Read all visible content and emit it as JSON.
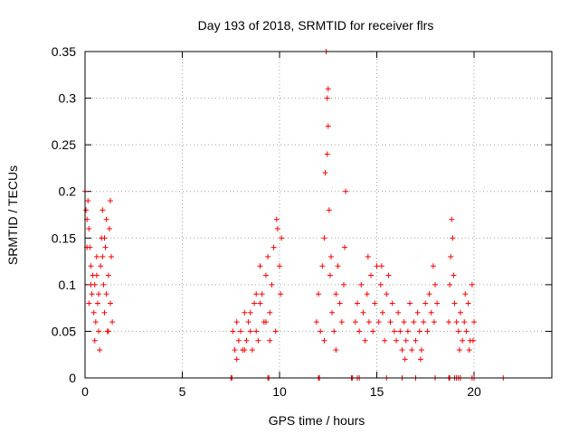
{
  "chart_data": {
    "type": "scatter",
    "title": "Day 193 of 2018, SRMTID for receiver flrs",
    "xlabel": "GPS time / hours",
    "ylabel": "SRMTID / TECUs",
    "xlim": [
      0,
      24
    ],
    "ylim": [
      0,
      0.35
    ],
    "grid": true,
    "marker": "+",
    "series_color": "#ff0000",
    "x_ticks": [
      0,
      5,
      10,
      15,
      20
    ],
    "x_tick_labels": [
      "0",
      "5",
      "10",
      "15",
      "20"
    ],
    "y_ticks": [
      0,
      0.05,
      0.1,
      0.15,
      0.2,
      0.25,
      0.3,
      0.35
    ],
    "y_tick_labels": [
      "0",
      "0.05",
      "0.1",
      "0.15",
      "0.2",
      "0.25",
      "0.3",
      "0.35"
    ],
    "series": [
      {
        "name": "SRMTID",
        "points": [
          [
            0.0,
            0.2
          ],
          [
            0.05,
            0.18
          ],
          [
            0.1,
            0.17
          ],
          [
            0.15,
            0.19
          ],
          [
            0.2,
            0.16
          ],
          [
            0.25,
            0.14
          ],
          [
            0.3,
            0.12
          ],
          [
            0.35,
            0.09
          ],
          [
            0.4,
            0.11
          ],
          [
            0.45,
            0.07
          ],
          [
            0.5,
            0.1
          ],
          [
            0.55,
            0.06
          ],
          [
            0.6,
            0.13
          ],
          [
            0.65,
            0.08
          ],
          [
            0.7,
            0.05
          ],
          [
            0.75,
            0.03
          ],
          [
            0.8,
            0.12
          ],
          [
            0.85,
            0.15
          ],
          [
            0.9,
            0.18
          ],
          [
            0.95,
            0.1
          ],
          [
            1.0,
            0.07
          ],
          [
            1.05,
            0.14
          ],
          [
            1.1,
            0.09
          ],
          [
            1.15,
            0.05
          ],
          [
            1.2,
            0.11
          ],
          [
            1.25,
            0.16
          ],
          [
            1.3,
            0.19
          ],
          [
            1.35,
            0.13
          ],
          [
            1.4,
            0.06
          ],
          [
            0.1,
            0.14
          ],
          [
            0.3,
            0.1
          ],
          [
            0.5,
            0.04
          ],
          [
            0.7,
            0.09
          ],
          [
            0.9,
            0.13
          ],
          [
            1.1,
            0.17
          ],
          [
            1.3,
            0.08
          ],
          [
            0.2,
            0.08
          ],
          [
            0.6,
            0.11
          ],
          [
            1.0,
            0.15
          ],
          [
            1.2,
            0.05
          ],
          [
            7.6,
            0.05
          ],
          [
            7.7,
            0.03
          ],
          [
            7.8,
            0.06
          ],
          [
            7.9,
            0.04
          ],
          [
            8.0,
            0.05
          ],
          [
            8.1,
            0.03
          ],
          [
            8.2,
            0.07
          ],
          [
            8.3,
            0.04
          ],
          [
            8.4,
            0.06
          ],
          [
            8.5,
            0.05
          ],
          [
            8.6,
            0.03
          ],
          [
            8.7,
            0.08
          ],
          [
            8.8,
            0.05
          ],
          [
            8.9,
            0.04
          ],
          [
            9.0,
            0.12
          ],
          [
            9.1,
            0.09
          ],
          [
            9.2,
            0.06
          ],
          [
            9.3,
            0.11
          ],
          [
            9.4,
            0.13
          ],
          [
            9.5,
            0.07
          ],
          [
            9.6,
            0.1
          ],
          [
            9.7,
            0.14
          ],
          [
            9.8,
            0.05
          ],
          [
            9.9,
            0.16
          ],
          [
            10.0,
            0.12
          ],
          [
            10.1,
            0.15
          ],
          [
            8.5,
            0.07
          ],
          [
            8.2,
            0.03
          ],
          [
            9.0,
            0.08
          ],
          [
            9.5,
            0.04
          ],
          [
            7.8,
            0.02
          ],
          [
            8.8,
            0.09
          ],
          [
            9.85,
            0.17
          ],
          [
            10.05,
            0.09
          ],
          [
            9.3,
            0.06
          ],
          [
            11.9,
            0.06
          ],
          [
            12.0,
            0.09
          ],
          [
            12.1,
            0.05
          ],
          [
            12.2,
            0.12
          ],
          [
            12.3,
            0.15
          ],
          [
            12.35,
            0.22
          ],
          [
            12.4,
            0.35
          ],
          [
            12.45,
            0.3
          ],
          [
            12.5,
            0.27
          ],
          [
            12.55,
            0.18
          ],
          [
            12.6,
            0.11
          ],
          [
            12.7,
            0.07
          ],
          [
            12.8,
            0.05
          ],
          [
            12.9,
            0.09
          ],
          [
            13.0,
            0.12
          ],
          [
            13.1,
            0.08
          ],
          [
            13.2,
            0.06
          ],
          [
            13.3,
            0.1
          ],
          [
            13.4,
            0.2
          ],
          [
            12.45,
            0.24
          ],
          [
            12.5,
            0.31
          ],
          [
            12.3,
            0.04
          ],
          [
            12.65,
            0.13
          ],
          [
            13.35,
            0.14
          ],
          [
            12.9,
            0.03
          ],
          [
            13.9,
            0.06
          ],
          [
            14.0,
            0.08
          ],
          [
            14.1,
            0.05
          ],
          [
            14.2,
            0.1
          ],
          [
            14.3,
            0.07
          ],
          [
            14.4,
            0.04
          ],
          [
            14.5,
            0.09
          ],
          [
            14.6,
            0.06
          ],
          [
            14.7,
            0.11
          ],
          [
            14.8,
            0.05
          ],
          [
            14.9,
            0.08
          ],
          [
            15.0,
            0.12
          ],
          [
            15.1,
            0.06
          ],
          [
            15.2,
            0.1
          ],
          [
            15.3,
            0.07
          ],
          [
            15.4,
            0.04
          ],
          [
            15.5,
            0.09
          ],
          [
            15.6,
            0.11
          ],
          [
            15.7,
            0.06
          ],
          [
            15.8,
            0.08
          ],
          [
            15.9,
            0.05
          ],
          [
            16.0,
            0.04
          ],
          [
            16.1,
            0.07
          ],
          [
            16.2,
            0.05
          ],
          [
            16.3,
            0.03
          ],
          [
            16.4,
            0.06
          ],
          [
            16.5,
            0.04
          ],
          [
            16.6,
            0.05
          ],
          [
            16.7,
            0.08
          ],
          [
            16.8,
            0.03
          ],
          [
            16.9,
            0.06
          ],
          [
            17.0,
            0.04
          ],
          [
            17.1,
            0.07
          ],
          [
            17.2,
            0.05
          ],
          [
            17.3,
            0.03
          ],
          [
            17.4,
            0.06
          ],
          [
            17.5,
            0.08
          ],
          [
            17.6,
            0.05
          ],
          [
            17.7,
            0.09
          ],
          [
            17.8,
            0.07
          ],
          [
            17.9,
            0.12
          ],
          [
            18.0,
            0.1
          ],
          [
            18.1,
            0.08
          ],
          [
            14.55,
            0.13
          ],
          [
            15.25,
            0.12
          ],
          [
            16.45,
            0.02
          ],
          [
            17.25,
            0.02
          ],
          [
            17.95,
            0.06
          ],
          [
            18.7,
            0.06
          ],
          [
            18.75,
            0.1
          ],
          [
            18.8,
            0.13
          ],
          [
            18.85,
            0.17
          ],
          [
            18.9,
            0.15
          ],
          [
            18.95,
            0.11
          ],
          [
            19.0,
            0.08
          ],
          [
            19.1,
            0.06
          ],
          [
            19.2,
            0.05
          ],
          [
            19.3,
            0.07
          ],
          [
            19.4,
            0.04
          ],
          [
            19.5,
            0.06
          ],
          [
            19.6,
            0.05
          ],
          [
            19.7,
            0.08
          ],
          [
            19.8,
            0.04
          ],
          [
            19.9,
            0.1
          ],
          [
            20.0,
            0.06
          ],
          [
            19.95,
            0.04
          ],
          [
            19.75,
            0.03
          ],
          [
            19.55,
            0.09
          ],
          [
            19.25,
            0.03
          ],
          [
            7.5,
            0.0
          ],
          [
            7.55,
            0.0
          ],
          [
            9.4,
            0.0
          ],
          [
            9.45,
            0.0
          ],
          [
            12.0,
            0.0
          ],
          [
            12.05,
            0.0
          ],
          [
            13.7,
            0.0
          ],
          [
            13.75,
            0.0
          ],
          [
            14.0,
            0.0
          ],
          [
            14.1,
            0.0
          ],
          [
            15.5,
            0.0
          ],
          [
            16.3,
            0.0
          ],
          [
            17.0,
            0.0
          ],
          [
            18.0,
            0.0
          ],
          [
            18.7,
            0.0
          ],
          [
            18.75,
            0.0
          ],
          [
            19.0,
            0.0
          ],
          [
            19.1,
            0.0
          ],
          [
            19.2,
            0.0
          ],
          [
            19.3,
            0.0
          ],
          [
            19.9,
            0.0
          ],
          [
            20.0,
            0.0
          ],
          [
            21.5,
            0.0
          ]
        ]
      }
    ]
  }
}
